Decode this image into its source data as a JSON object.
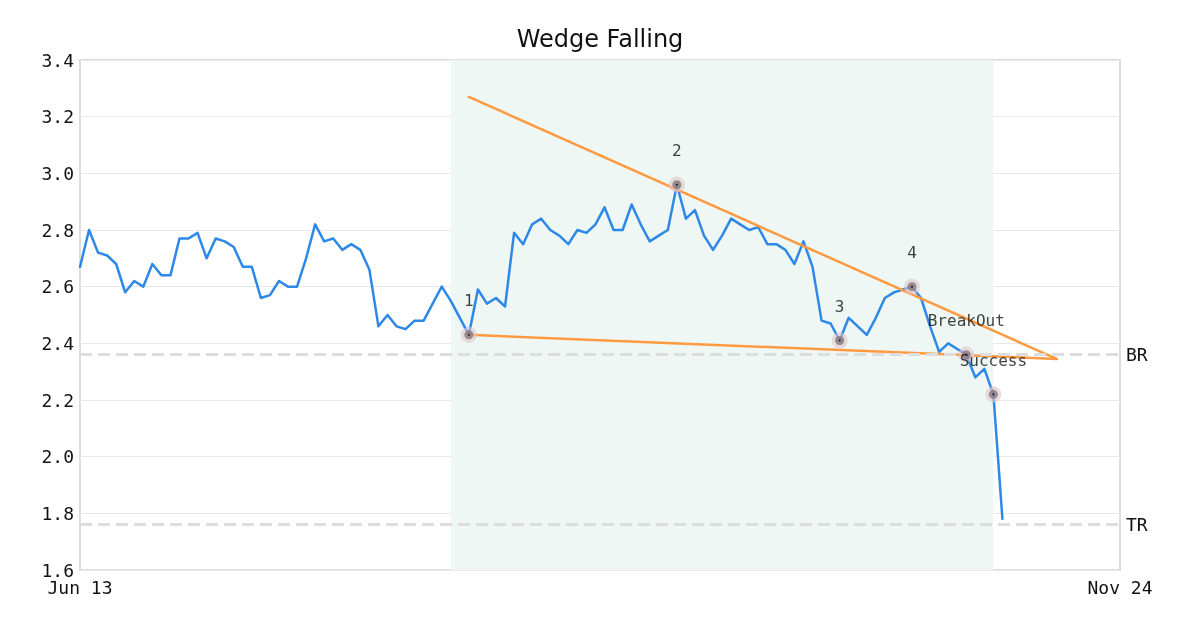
{
  "chart_data": {
    "type": "line",
    "title": "Wedge Falling",
    "categories": [
      "Jun 13",
      null,
      null,
      null,
      null,
      null,
      null,
      null,
      null,
      null,
      null,
      null,
      null,
      null,
      null,
      null,
      null,
      null,
      null,
      null,
      null,
      null,
      null,
      null,
      null,
      null,
      null,
      null,
      null,
      null,
      null,
      null,
      null,
      null,
      null,
      null,
      null,
      null,
      null,
      null,
      null,
      null,
      null,
      null,
      null,
      null,
      null,
      null,
      null,
      null,
      null,
      null,
      null,
      null,
      null,
      null,
      null,
      null,
      null,
      null,
      null,
      null,
      null,
      null,
      null,
      null,
      null,
      null,
      null,
      null,
      null,
      null,
      null,
      null,
      null,
      null,
      null,
      null,
      null,
      null,
      null,
      null,
      null,
      null,
      null,
      null,
      null,
      null,
      null,
      null,
      null,
      null,
      null,
      null,
      null,
      null,
      null,
      null,
      null,
      null,
      null,
      null,
      null,
      null,
      null,
      null,
      null,
      null,
      null,
      null,
      null,
      null,
      null,
      null,
      null,
      "Nov 24"
    ],
    "series": [
      {
        "color": "#2d88e8",
        "marker": "none",
        "values": [
          2.67,
          2.8,
          2.72,
          2.71,
          2.68,
          2.58,
          2.62,
          2.6,
          2.68,
          2.64,
          2.64,
          2.77,
          2.77,
          2.79,
          2.7,
          2.77,
          2.76,
          2.74,
          2.67,
          2.67,
          2.56,
          2.57,
          2.62,
          2.6,
          2.6,
          2.7,
          2.82,
          2.76,
          2.77,
          2.73,
          2.75,
          2.73,
          2.66,
          2.46,
          2.5,
          2.46,
          2.45,
          2.48,
          2.48,
          2.54,
          2.6,
          2.55,
          2.49,
          2.43,
          2.59,
          2.54,
          2.56,
          2.53,
          2.79,
          2.75,
          2.82,
          2.84,
          2.8,
          2.78,
          2.75,
          2.8,
          2.79,
          2.82,
          2.88,
          2.8,
          2.8,
          2.89,
          2.82,
          2.76,
          2.78,
          2.8,
          2.96,
          2.84,
          2.87,
          2.78,
          2.73,
          2.78,
          2.84,
          2.82,
          2.8,
          2.81,
          2.75,
          2.75,
          2.73,
          2.68,
          2.76,
          2.67,
          2.48,
          2.47,
          2.41,
          2.49,
          2.46,
          2.43,
          2.49,
          2.56,
          2.58,
          2.59,
          2.6,
          2.56,
          2.46,
          2.37,
          2.4,
          2.38,
          2.36,
          2.28,
          2.31,
          2.22,
          1.78,
          null,
          null,
          null,
          null,
          null,
          null,
          null,
          null,
          null,
          null,
          null,
          null,
          null
        ]
      },
      {
        "type": "line",
        "color": "#ff9a40",
        "marker": "none",
        "values": [
          null,
          null,
          null,
          null,
          null,
          null,
          null,
          null,
          null,
          null,
          null,
          null,
          null,
          null,
          null,
          null,
          null,
          null,
          null,
          null,
          null,
          null,
          null,
          null,
          null,
          null,
          null,
          null,
          null,
          null,
          null,
          null,
          null,
          null,
          null,
          null,
          null,
          null,
          null,
          null,
          null,
          null,
          null,
          3.27,
          null,
          null,
          null,
          null,
          null,
          null,
          null,
          null,
          null,
          null,
          null,
          null,
          null,
          null,
          null,
          null,
          null,
          null,
          null,
          null,
          null,
          null,
          null,
          null,
          null,
          null,
          null,
          null,
          null,
          null,
          null,
          null,
          null,
          null,
          null,
          null,
          null,
          null,
          null,
          null,
          null,
          null,
          null,
          null,
          null,
          null,
          null,
          null,
          null,
          null,
          null,
          null,
          null,
          null,
          null,
          null,
          null,
          null,
          null,
          null,
          null,
          null,
          null,
          null,
          2.345,
          null,
          null,
          null,
          null,
          null,
          null,
          null
        ]
      },
      {
        "type": "line",
        "color": "#ff9a40",
        "marker": "none",
        "values": [
          null,
          null,
          null,
          null,
          null,
          null,
          null,
          null,
          null,
          null,
          null,
          null,
          null,
          null,
          null,
          null,
          null,
          null,
          null,
          null,
          null,
          null,
          null,
          null,
          null,
          null,
          null,
          null,
          null,
          null,
          null,
          null,
          null,
          null,
          null,
          null,
          null,
          null,
          null,
          null,
          null,
          null,
          null,
          2.43,
          null,
          null,
          null,
          null,
          null,
          null,
          null,
          null,
          null,
          null,
          null,
          null,
          null,
          null,
          null,
          null,
          null,
          null,
          null,
          null,
          null,
          null,
          null,
          null,
          null,
          null,
          null,
          null,
          null,
          null,
          null,
          null,
          null,
          null,
          null,
          null,
          null,
          null,
          null,
          null,
          null,
          null,
          null,
          null,
          null,
          null,
          null,
          null,
          null,
          null,
          null,
          null,
          null,
          null,
          null,
          null,
          null,
          null,
          null,
          null,
          null,
          null,
          null,
          null,
          2.345,
          null,
          null,
          null,
          null,
          null,
          null,
          null
        ]
      },
      {
        "type": "scatter",
        "color": "#000000",
        "marker": "circle",
        "values": [
          null,
          null,
          null,
          null,
          null,
          null,
          null,
          null,
          null,
          null,
          null,
          null,
          null,
          null,
          null,
          null,
          null,
          null,
          null,
          null,
          null,
          null,
          null,
          null,
          null,
          null,
          null,
          null,
          null,
          null,
          null,
          null,
          null,
          null,
          null,
          null,
          null,
          null,
          null,
          null,
          null,
          null,
          null,
          2.43,
          null,
          null,
          null,
          null,
          null,
          null,
          null,
          null,
          null,
          null,
          null,
          null,
          null,
          null,
          null,
          null,
          null,
          null,
          null,
          null,
          null,
          null,
          2.96,
          null,
          null,
          null,
          null,
          null,
          null,
          null,
          null,
          null,
          null,
          null,
          null,
          null,
          null,
          null,
          null,
          null,
          2.41,
          null,
          null,
          null,
          null,
          null,
          null,
          null,
          2.6,
          null,
          null,
          null,
          null,
          null,
          2.36,
          null,
          null,
          2.22,
          null,
          null,
          null,
          null,
          null,
          null,
          null,
          null,
          null,
          null,
          null,
          null,
          null,
          null
        ]
      }
    ],
    "annotations": [
      "1",
      "2",
      "3",
      "4",
      "BreakOut",
      "Success"
    ],
    "ylim": [
      1.6,
      3.4
    ],
    "yticks": [
      1.6,
      1.8,
      {
        "value": 2,
        "label": "2.0"
      },
      2.2,
      2.4,
      2.6,
      2.8,
      {
        "value": 3,
        "label": "3.0"
      },
      3.2,
      3.4
    ],
    "grid": "y",
    "ref_lines": [
      {
        "axis": "y",
        "value": 2.36,
        "label": "BR",
        "color": "#dddddd",
        "line_style": "dashed"
      },
      {
        "axis": "y",
        "value": 1.76,
        "label": "TR",
        "color": "#dddddd",
        "line_style": "dashed"
      }
    ]
  }
}
